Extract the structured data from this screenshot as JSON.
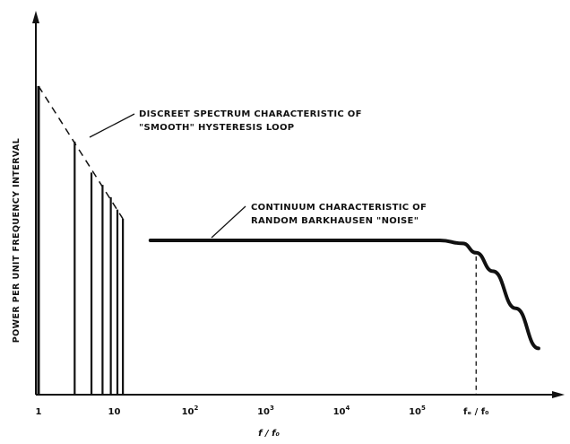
{
  "chart_data": {
    "type": "line",
    "title": "",
    "xlabel": "f / f₀",
    "ylabel": "POWER PER UNIT FREQUENCY INTERVAL",
    "x_scale": "log",
    "grid": false,
    "x_ticks": [
      {
        "x": 1,
        "base": "1",
        "exp": ""
      },
      {
        "x": 10,
        "base": "10",
        "exp": ""
      },
      {
        "x": 100,
        "base": "10",
        "exp": "2"
      },
      {
        "x": 1000,
        "base": "10",
        "exp": "3"
      },
      {
        "x": 10000,
        "base": "10",
        "exp": "4"
      },
      {
        "x": 100000,
        "base": "10",
        "exp": "5"
      }
    ],
    "marker_tick": {
      "x": 600000,
      "label": "fₑ / f₀"
    },
    "discrete_spectrum": {
      "name": "DISCRETE SPECTRUM CHARACTERISTIC OF \"SMOOTH\" HYSTERESIS LOOP",
      "harmonics": [
        1,
        3,
        5,
        7,
        9,
        11,
        13
      ],
      "relative_heights": [
        1.0,
        0.82,
        0.72,
        0.68,
        0.64,
        0.6,
        0.57
      ]
    },
    "continuum": {
      "name": "CONTINUUM CHARACTERISTIC OF RANDOM BARKHAUSEN \"NOISE\"",
      "x": [
        30,
        300,
        3000,
        30000,
        200000,
        400000,
        600000,
        1000000,
        2000000,
        4000000
      ],
      "relative_y": [
        0.5,
        0.5,
        0.5,
        0.5,
        0.5,
        0.49,
        0.46,
        0.4,
        0.28,
        0.15
      ]
    },
    "annotations": [
      {
        "lines": [
          "DISCREET SPECTRUM CHARACTERISTIC OF",
          "\"SMOOTH\" HYSTERESIS LOOP"
        ]
      },
      {
        "lines": [
          "CONTINUUM CHARACTERISTIC OF",
          "RANDOM BARKHAUSEN \"NOISE\""
        ]
      }
    ]
  }
}
